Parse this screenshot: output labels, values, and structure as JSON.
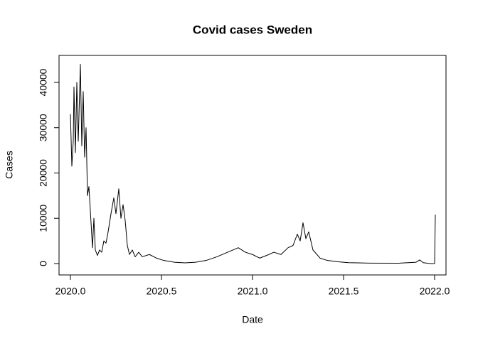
{
  "chart_data": {
    "type": "line",
    "title": "Covid cases Sweden",
    "x_label": "Date",
    "y_label": "Cases",
    "color": "#000000",
    "x": [
      2020.0,
      2020.0078,
      2020.0156,
      2020.0195,
      2020.0273,
      2020.0352,
      2020.043,
      2020.0547,
      2020.0625,
      2020.0703,
      2020.0781,
      2020.0859,
      2020.0938,
      2020.1016,
      2020.1133,
      2020.1211,
      2020.1289,
      2020.1367,
      2020.1484,
      2020.1602,
      2020.1719,
      2020.1836,
      2020.1953,
      2020.207,
      2020.2227,
      2020.2383,
      2020.25,
      2020.2656,
      2020.2773,
      2020.2891,
      2020.3008,
      2020.3125,
      2020.3242,
      2020.3398,
      2020.3555,
      2020.375,
      2020.3945,
      2020.4336,
      2020.4727,
      2020.5117,
      2020.5703,
      2020.6289,
      2020.6875,
      2020.7461,
      2020.8047,
      2020.8633,
      2020.9219,
      2020.9609,
      2021.0,
      2021.0391,
      2021.0781,
      2021.1172,
      2021.1563,
      2021.1953,
      2021.2227,
      2021.2461,
      2021.2617,
      2021.2773,
      2021.293,
      2021.3086,
      2021.332,
      2021.3711,
      2021.4102,
      2021.4688,
      2021.5273,
      2021.6445,
      2021.8008,
      2021.8984,
      2021.918,
      2021.9375,
      2021.9766,
      2022.0,
      2022.0039
    ],
    "values": [
      33000,
      21500,
      27000,
      39000,
      24500,
      40000,
      27000,
      44000,
      26000,
      38000,
      23500,
      30000,
      15000,
      17000,
      9000,
      3500,
      10000,
      3000,
      1800,
      3000,
      2500,
      5000,
      4500,
      7000,
      11000,
      14500,
      11000,
      16500,
      10000,
      13000,
      9500,
      4000,
      2000,
      3000,
      1500,
      2500,
      1500,
      2000,
      1200,
      700,
      300,
      150,
      300,
      700,
      1500,
      2500,
      3500,
      2500,
      2000,
      1200,
      1800,
      2500,
      2000,
      3500,
      4000,
      6500,
      5000,
      9000,
      5500,
      7000,
      3000,
      1200,
      700,
      400,
      200,
      100,
      80,
      300,
      800,
      200,
      0,
      0,
      10800
    ],
    "xlim": [
      2019.9375,
      2022.0625
    ],
    "xticks": [
      {
        "value": 2020,
        "label": "2020.0"
      },
      {
        "value": 2020.5,
        "label": "2020.5"
      },
      {
        "value": 2021,
        "label": "2021.0"
      },
      {
        "value": 2021.5,
        "label": "2021.5"
      },
      {
        "value": 2022,
        "label": "2022.0"
      }
    ],
    "ylim": [
      -2510,
      45960
    ],
    "yticks": [
      0,
      10000,
      20000,
      30000,
      40000
    ]
  }
}
